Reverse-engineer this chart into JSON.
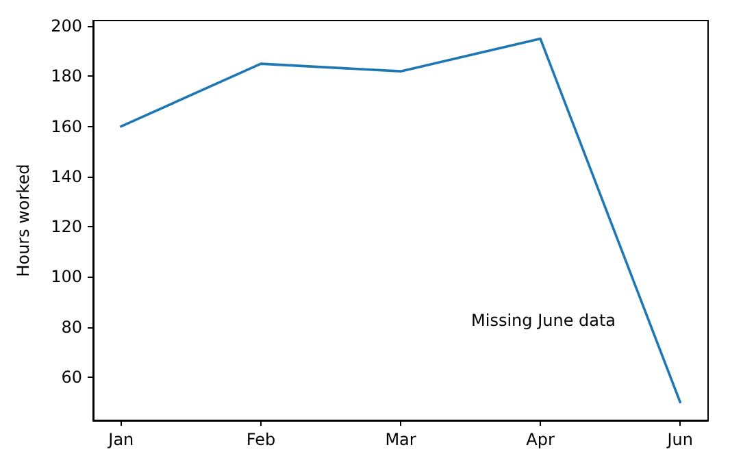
{
  "chart_data": {
    "type": "line",
    "ylabel": "Hours worked",
    "categories": [
      "Jan",
      "Feb",
      "Mar",
      "Apr",
      "Jun"
    ],
    "series": [
      {
        "color": "#1f77b4",
        "values": [
          160,
          185,
          182,
          195,
          50
        ]
      }
    ],
    "ylim": [
      42.75,
      202.25
    ],
    "yticks": [
      60,
      80,
      100,
      120,
      140,
      160,
      180,
      200
    ],
    "annotations": [
      "Missing June data"
    ],
    "grid": false,
    "marker": "none",
    "line_style": "solid"
  }
}
